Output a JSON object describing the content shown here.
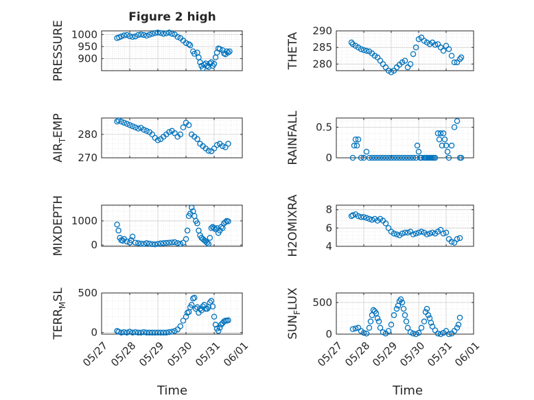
{
  "figure": {
    "title": "Figure 2 high",
    "xlabel": "Time"
  },
  "colors": {
    "marker": "#0072BD",
    "axis": "#262626",
    "grid": "#cfcfcf",
    "minor_grid": "#e4e4e4"
  },
  "chart_data": [
    {
      "type": "scatter",
      "id": "pressure",
      "ylabel": "PRESSURE",
      "ylim": [
        850,
        1015
      ],
      "yticks": [
        900,
        950,
        1000
      ],
      "xlim": [
        "05/27",
        "06/01"
      ],
      "xticks": [
        "05/27",
        "05/28",
        "05/29",
        "05/30",
        "05/31",
        "06/01"
      ],
      "x": [
        0.55,
        0.62,
        0.7,
        0.8,
        0.9,
        1.0,
        1.1,
        1.2,
        1.3,
        1.4,
        1.5,
        1.6,
        1.7,
        1.8,
        1.9,
        2.0,
        2.1,
        2.2,
        2.3,
        2.4,
        2.5,
        2.6,
        2.7,
        2.8,
        2.9,
        3.0,
        3.1,
        3.15,
        3.25,
        3.3,
        3.4,
        3.45,
        3.5,
        3.55,
        3.6,
        3.65,
        3.7,
        3.75,
        3.8,
        3.85,
        3.9,
        3.95,
        4.0,
        4.05,
        4.1,
        4.15,
        4.2,
        4.3,
        4.35,
        4.4,
        4.45,
        4.5,
        4.55
      ],
      "y": [
        985,
        988,
        992,
        996,
        998,
        993,
        990,
        992,
        998,
        1000,
        998,
        995,
        999,
        1003,
        1006,
        1008,
        1006,
        1003,
        1005,
        1008,
        1003,
        1000,
        990,
        985,
        975,
        965,
        960,
        955,
        930,
        920,
        925,
        905,
        885,
        870,
        860,
        875,
        880,
        870,
        865,
        880,
        885,
        870,
        878,
        905,
        925,
        942,
        940,
        935,
        922,
        918,
        930,
        925,
        930
      ]
    },
    {
      "type": "scatter",
      "id": "theta",
      "ylabel": "THETA",
      "ylim": [
        278,
        290
      ],
      "yticks": [
        280,
        285,
        290
      ],
      "xlim": [
        "05/27",
        "06/01"
      ],
      "xticks": [
        "05/27",
        "05/28",
        "05/29",
        "05/30",
        "05/31",
        "06/01"
      ],
      "x": [
        0.55,
        0.6,
        0.7,
        0.8,
        0.9,
        1.0,
        1.1,
        1.2,
        1.3,
        1.4,
        1.5,
        1.6,
        1.7,
        1.8,
        1.9,
        2.0,
        2.1,
        2.2,
        2.3,
        2.4,
        2.5,
        2.6,
        2.7,
        2.8,
        2.9,
        3.0,
        3.1,
        3.2,
        3.3,
        3.4,
        3.5,
        3.6,
        3.7,
        3.8,
        3.9,
        4.0,
        4.1,
        4.2,
        4.3,
        4.4,
        4.5,
        4.55
      ],
      "y": [
        286.5,
        286.0,
        285.5,
        285.0,
        284.5,
        284.2,
        284.0,
        283.8,
        283.2,
        282.5,
        282.0,
        281.0,
        280.0,
        279.0,
        278.0,
        277.5,
        278.0,
        279.0,
        279.8,
        280.5,
        281.0,
        279.0,
        280.0,
        283.0,
        285.0,
        287.5,
        288.0,
        287.0,
        286.5,
        286.0,
        286.5,
        285.8,
        286.0,
        285.0,
        284.0,
        285.5,
        284.5,
        282.5,
        280.5,
        280.5,
        281.5,
        282.0
      ]
    },
    {
      "type": "scatter",
      "id": "air_temp",
      "ylabel": "AIR_TEMP",
      "ylim": [
        270,
        287
      ],
      "yticks": [
        270,
        280
      ],
      "xlim": [
        "05/27",
        "06/01"
      ],
      "xticks": [
        "05/27",
        "05/28",
        "05/29",
        "05/30",
        "05/31",
        "06/01"
      ],
      "x": [
        0.55,
        0.6,
        0.7,
        0.8,
        0.9,
        1.0,
        1.1,
        1.2,
        1.3,
        1.4,
        1.5,
        1.6,
        1.7,
        1.8,
        1.9,
        2.0,
        2.1,
        2.2,
        2.3,
        2.4,
        2.5,
        2.6,
        2.7,
        2.8,
        2.9,
        3.0,
        3.1,
        3.2,
        3.3,
        3.4,
        3.5,
        3.6,
        3.7,
        3.8,
        3.9,
        4.0,
        4.1,
        4.2,
        4.3,
        4.4,
        4.5
      ],
      "y": [
        285.5,
        286.0,
        285.5,
        285.0,
        284.5,
        284.0,
        283.5,
        283.0,
        282.5,
        282.8,
        282.0,
        281.5,
        281.0,
        280.0,
        278.5,
        277.5,
        278.0,
        279.0,
        280.0,
        281.0,
        281.5,
        280.5,
        279.0,
        280.0,
        283.0,
        285.0,
        284.0,
        280.0,
        279.0,
        278.0,
        276.0,
        275.0,
        274.0,
        273.0,
        272.8,
        274.0,
        275.5,
        276.0,
        275.0,
        274.5,
        276.0
      ]
    },
    {
      "type": "scatter",
      "id": "rainfall",
      "ylabel": "RAINFALL",
      "ylim": [
        0,
        0.65
      ],
      "yticks": [
        0,
        0.5
      ],
      "xlim": [
        "05/27",
        "06/01"
      ],
      "xticks": [
        "05/27",
        "05/28",
        "05/29",
        "05/30",
        "05/31",
        "06/01"
      ],
      "x": [
        0.6,
        0.65,
        0.7,
        0.75,
        0.8,
        0.9,
        1.0,
        1.1,
        1.2,
        1.3,
        1.4,
        1.5,
        1.6,
        1.7,
        1.8,
        1.9,
        2.0,
        2.1,
        2.2,
        2.3,
        2.4,
        2.5,
        2.6,
        2.7,
        2.8,
        2.9,
        2.95,
        3.0,
        3.05,
        3.1,
        3.2,
        3.25,
        3.3,
        3.35,
        3.4,
        3.45,
        3.5,
        3.55,
        3.6,
        3.7,
        3.75,
        3.8,
        3.85,
        3.9,
        3.95,
        4.0,
        4.05,
        4.1,
        4.2,
        4.3,
        4.4,
        4.5,
        4.55
      ],
      "y": [
        0.0,
        0.2,
        0.3,
        0.2,
        0.3,
        0.0,
        0.0,
        0.1,
        0.0,
        0.0,
        0.0,
        0.0,
        0.0,
        0.0,
        0.0,
        0.0,
        0.0,
        0.0,
        0.0,
        0.0,
        0.0,
        0.0,
        0.0,
        0.0,
        0.0,
        0.0,
        0.2,
        0.1,
        0.0,
        0.0,
        0.0,
        0.0,
        0.0,
        0.0,
        0.0,
        0.0,
        0.0,
        0.0,
        0.0,
        0.4,
        0.3,
        0.4,
        0.2,
        0.4,
        0.3,
        0.2,
        0.1,
        0.0,
        0.2,
        0.5,
        0.6,
        0.0,
        0.0
      ]
    },
    {
      "type": "scatter",
      "id": "mixdepth",
      "ylabel": "MIXDEPTH",
      "ylim": [
        -50,
        1650
      ],
      "yticks": [
        0,
        1000
      ],
      "xlim": [
        "05/27",
        "06/01"
      ],
      "xticks": [
        "05/27",
        "05/28",
        "05/29",
        "05/30",
        "05/31",
        "06/01"
      ],
      "x": [
        0.55,
        0.6,
        0.65,
        0.7,
        0.75,
        0.8,
        0.9,
        1.0,
        1.05,
        1.1,
        1.2,
        1.3,
        1.4,
        1.5,
        1.6,
        1.7,
        1.8,
        1.9,
        2.0,
        2.1,
        2.2,
        2.3,
        2.4,
        2.5,
        2.6,
        2.7,
        2.8,
        2.9,
        3.0,
        3.05,
        3.1,
        3.15,
        3.2,
        3.25,
        3.3,
        3.35,
        3.4,
        3.45,
        3.5,
        3.55,
        3.6,
        3.65,
        3.7,
        3.75,
        3.8,
        3.85,
        3.9,
        3.95,
        4.0,
        4.05,
        4.1,
        4.15,
        4.2,
        4.25,
        4.3,
        4.35,
        4.4,
        4.45,
        4.5
      ],
      "y": [
        850,
        600,
        300,
        200,
        180,
        250,
        150,
        100,
        200,
        350,
        100,
        80,
        60,
        50,
        80,
        60,
        40,
        30,
        50,
        70,
        80,
        90,
        100,
        110,
        120,
        80,
        50,
        100,
        250,
        600,
        1200,
        1300,
        1550,
        1400,
        1200,
        1000,
        900,
        600,
        400,
        300,
        250,
        200,
        150,
        100,
        50,
        300,
        700,
        750,
        700,
        650,
        700,
        500,
        600,
        750,
        700,
        900,
        950,
        1000,
        980
      ]
    },
    {
      "type": "scatter",
      "id": "h2omixra",
      "ylabel": "H2OMIXRA",
      "ylim": [
        4,
        8.5
      ],
      "yticks": [
        4,
        6,
        8
      ],
      "xlim": [
        "05/27",
        "06/01"
      ],
      "xticks": [
        "05/27",
        "05/28",
        "05/29",
        "05/30",
        "05/31",
        "06/01"
      ],
      "x": [
        0.55,
        0.6,
        0.7,
        0.8,
        0.9,
        1.0,
        1.1,
        1.2,
        1.3,
        1.4,
        1.5,
        1.6,
        1.7,
        1.8,
        1.9,
        2.0,
        2.1,
        2.2,
        2.3,
        2.4,
        2.5,
        2.6,
        2.7,
        2.8,
        2.9,
        3.0,
        3.1,
        3.2,
        3.3,
        3.4,
        3.5,
        3.6,
        3.7,
        3.8,
        3.9,
        4.0,
        4.1,
        4.2,
        4.3,
        4.4,
        4.5
      ],
      "y": [
        7.3,
        7.4,
        7.5,
        7.3,
        7.2,
        7.2,
        7.1,
        7.0,
        6.9,
        7.0,
        6.8,
        7.0,
        6.8,
        6.5,
        6.0,
        5.6,
        5.4,
        5.3,
        5.2,
        5.4,
        5.5,
        5.5,
        5.6,
        5.3,
        5.4,
        5.5,
        5.6,
        5.5,
        5.3,
        5.4,
        5.5,
        5.4,
        5.6,
        5.8,
        5.4,
        5.5,
        4.8,
        4.5,
        4.4,
        4.8,
        4.9
      ]
    },
    {
      "type": "scatter",
      "id": "terr_msl",
      "ylabel": "TERR_MSL",
      "ylim": [
        -20,
        500
      ],
      "yticks": [
        0,
        500
      ],
      "xlim": [
        "05/27",
        "06/01"
      ],
      "xticks": [
        "05/27",
        "05/28",
        "05/29",
        "05/30",
        "05/31",
        "06/01"
      ],
      "x": [
        0.55,
        0.6,
        0.7,
        0.8,
        0.9,
        1.0,
        1.1,
        1.2,
        1.3,
        1.4,
        1.5,
        1.6,
        1.7,
        1.8,
        1.9,
        2.0,
        2.1,
        2.2,
        2.3,
        2.4,
        2.5,
        2.6,
        2.7,
        2.8,
        2.9,
        3.0,
        3.05,
        3.1,
        3.15,
        3.2,
        3.25,
        3.3,
        3.35,
        3.4,
        3.45,
        3.5,
        3.55,
        3.6,
        3.65,
        3.7,
        3.75,
        3.8,
        3.85,
        3.9,
        3.95,
        4.0,
        4.05,
        4.1,
        4.15,
        4.2,
        4.25,
        4.3,
        4.35,
        4.4,
        4.45,
        4.5
      ],
      "y": [
        20,
        10,
        0,
        5,
        0,
        10,
        0,
        5,
        0,
        0,
        5,
        0,
        0,
        0,
        0,
        0,
        0,
        0,
        0,
        5,
        10,
        20,
        40,
        80,
        150,
        200,
        250,
        260,
        320,
        350,
        430,
        440,
        300,
        320,
        250,
        300,
        280,
        330,
        350,
        300,
        300,
        320,
        380,
        400,
        330,
        200,
        100,
        50,
        20,
        60,
        100,
        120,
        140,
        150,
        150,
        155
      ]
    },
    {
      "type": "scatter",
      "id": "sun_flux",
      "ylabel": "SUN_FLUX",
      "ylim": [
        0,
        650
      ],
      "yticks": [
        0,
        500
      ],
      "xlim": [
        "05/27",
        "06/01"
      ],
      "xticks": [
        "05/27",
        "05/28",
        "05/29",
        "05/30",
        "05/31",
        "06/01"
      ],
      "x": [
        0.6,
        0.7,
        0.8,
        0.9,
        1.0,
        1.1,
        1.2,
        1.25,
        1.3,
        1.35,
        1.4,
        1.45,
        1.5,
        1.55,
        1.6,
        1.7,
        1.8,
        1.9,
        2.0,
        2.1,
        2.2,
        2.25,
        2.3,
        2.35,
        2.4,
        2.45,
        2.5,
        2.55,
        2.6,
        2.7,
        2.8,
        2.9,
        3.0,
        3.1,
        3.2,
        3.25,
        3.3,
        3.35,
        3.4,
        3.45,
        3.5,
        3.6,
        3.7,
        3.8,
        3.9,
        4.0,
        4.1,
        4.2,
        4.3,
        4.4,
        4.45,
        4.5
      ],
      "y": [
        80,
        90,
        100,
        50,
        20,
        10,
        100,
        200,
        300,
        380,
        360,
        330,
        250,
        200,
        100,
        30,
        10,
        50,
        150,
        300,
        400,
        450,
        520,
        550,
        500,
        400,
        300,
        200,
        100,
        30,
        10,
        0,
        20,
        100,
        200,
        350,
        400,
        300,
        250,
        180,
        120,
        60,
        10,
        0,
        20,
        50,
        0,
        10,
        50,
        100,
        150,
        260
      ]
    }
  ]
}
